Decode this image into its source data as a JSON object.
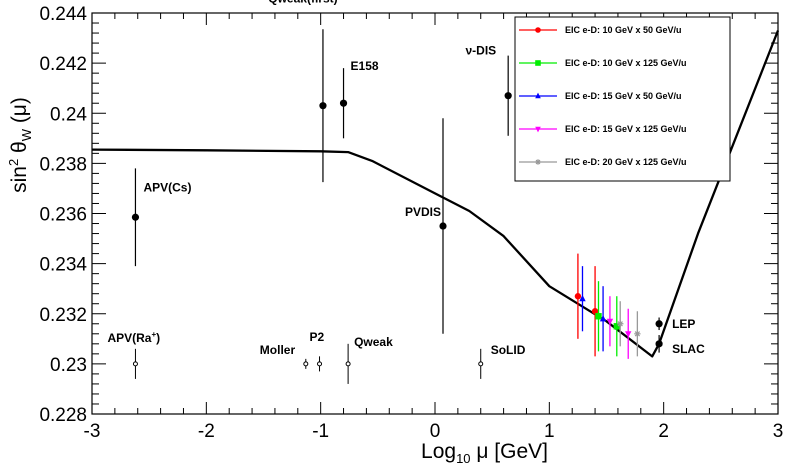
{
  "chart_data": {
    "type": "scatter",
    "title": "",
    "xlabel_main": "Log",
    "xlabel_sub": "10",
    "xlabel_rest": " μ [GeV]",
    "ylabel_main": "sin",
    "ylabel_sup": "2",
    "ylabel_theta": " θ",
    "ylabel_sub": "W",
    "ylabel_rest": " (μ)",
    "xlim": [
      -3,
      3
    ],
    "ylim": [
      0.228,
      0.244
    ],
    "xticks": [
      {
        "value": -3,
        "label": "-3"
      },
      {
        "value": -2,
        "label": "-2"
      },
      {
        "value": -1,
        "label": "-1"
      },
      {
        "value": 0,
        "label": "0"
      },
      {
        "value": 1,
        "label": "1"
      },
      {
        "value": 2,
        "label": "2"
      },
      {
        "value": 3,
        "label": "3"
      }
    ],
    "yticks": [
      {
        "value": 0.228,
        "label": "0.228"
      },
      {
        "value": 0.23,
        "label": "0.23"
      },
      {
        "value": 0.232,
        "label": "0.232"
      },
      {
        "value": 0.234,
        "label": "0.234"
      },
      {
        "value": 0.236,
        "label": "0.236"
      },
      {
        "value": 0.238,
        "label": "0.238"
      },
      {
        "value": 0.24,
        "label": "0.24"
      },
      {
        "value": 0.242,
        "label": "0.242"
      },
      {
        "value": 0.244,
        "label": "0.244"
      }
    ],
    "theory_curve": [
      [
        -3.0,
        0.23855
      ],
      [
        -2.0,
        0.23852
      ],
      [
        -1.0,
        0.23848
      ],
      [
        -0.76,
        0.23845
      ],
      [
        -0.55,
        0.2381
      ],
      [
        0.0,
        0.2368
      ],
      [
        0.3,
        0.2361
      ],
      [
        0.6,
        0.2351
      ],
      [
        1.0,
        0.2331
      ],
      [
        1.5,
        0.2317
      ],
      [
        1.9,
        0.2303
      ],
      [
        1.96,
        0.2308
      ],
      [
        2.3,
        0.2352
      ],
      [
        3.0,
        0.2433
      ]
    ],
    "measured": [
      {
        "name": "APV(Cs)",
        "x": -2.62,
        "y": 0.23585,
        "err": 0.00195
      },
      {
        "name": "Qweak(first)",
        "x": -0.98,
        "y": 0.2403,
        "err": 0.00305
      },
      {
        "name": "E158",
        "x": -0.8,
        "y": 0.2404,
        "err": 0.0014
      },
      {
        "name": "ν-DIS",
        "x": 0.64,
        "y": 0.2407,
        "err": 0.0016
      },
      {
        "name": "PVDIS",
        "x": 0.07,
        "y": 0.2355,
        "err": 0.0043
      },
      {
        "name": "LEP",
        "x": 1.96,
        "y": 0.2316,
        "err": 0.00025
      },
      {
        "name": "SLAC",
        "x": 1.96,
        "y": 0.2308,
        "err": 0.00035
      }
    ],
    "projected": [
      {
        "name": "APV(Ra⁺)",
        "label_main": "APV(Ra",
        "label_sup": "+",
        "label_end": ")",
        "x": -2.62,
        "y": 0.23,
        "err": 0.0006
      },
      {
        "name": "Moller",
        "x": -1.13,
        "y": 0.23,
        "err": 0.0002
      },
      {
        "name": "P2",
        "x": -1.01,
        "y": 0.23,
        "err": 0.0003
      },
      {
        "name": "Qweak",
        "x": -0.76,
        "y": 0.23,
        "err": 0.0008
      },
      {
        "name": "SoLID",
        "x": 0.4,
        "y": 0.23,
        "err": 0.0006
      }
    ],
    "series": [
      {
        "name": "EIC e-D: 10 GeV x 50 GeV/u",
        "color": "#ff0000",
        "marker": "circle",
        "points": [
          {
            "x": 1.25,
            "y": 0.2327,
            "err": 0.0017
          },
          {
            "x": 1.4,
            "y": 0.2321,
            "err": 0.0018
          }
        ]
      },
      {
        "name": "EIC e-D: 10 GeV x 125 GeV/u",
        "color": "#00ee00",
        "marker": "square",
        "points": [
          {
            "x": 1.43,
            "y": 0.2319,
            "err": 0.0014
          },
          {
            "x": 1.59,
            "y": 0.2315,
            "err": 0.0012
          }
        ]
      },
      {
        "name": "EIC e-D: 15 GeV x 50 GeV/u",
        "color": "#0000ff",
        "marker": "triangle-up",
        "points": [
          {
            "x": 1.29,
            "y": 0.2326,
            "err": 0.0013
          },
          {
            "x": 1.47,
            "y": 0.2318,
            "err": 0.0013
          }
        ]
      },
      {
        "name": "EIC e-D: 15 GeV x 125 GeV/u",
        "color": "#ff00ff",
        "marker": "triangle-down",
        "points": [
          {
            "x": 1.53,
            "y": 0.2317,
            "err": 0.001
          },
          {
            "x": 1.69,
            "y": 0.2312,
            "err": 0.001
          }
        ]
      },
      {
        "name": "EIC e-D: 20 GeV x 125 GeV/u",
        "color": "#999999",
        "marker": "star",
        "points": [
          {
            "x": 1.62,
            "y": 0.2316,
            "err": 0.0009
          },
          {
            "x": 1.77,
            "y": 0.2312,
            "err": 0.0009
          }
        ]
      }
    ],
    "legend_position": "top-right",
    "grid": false
  }
}
